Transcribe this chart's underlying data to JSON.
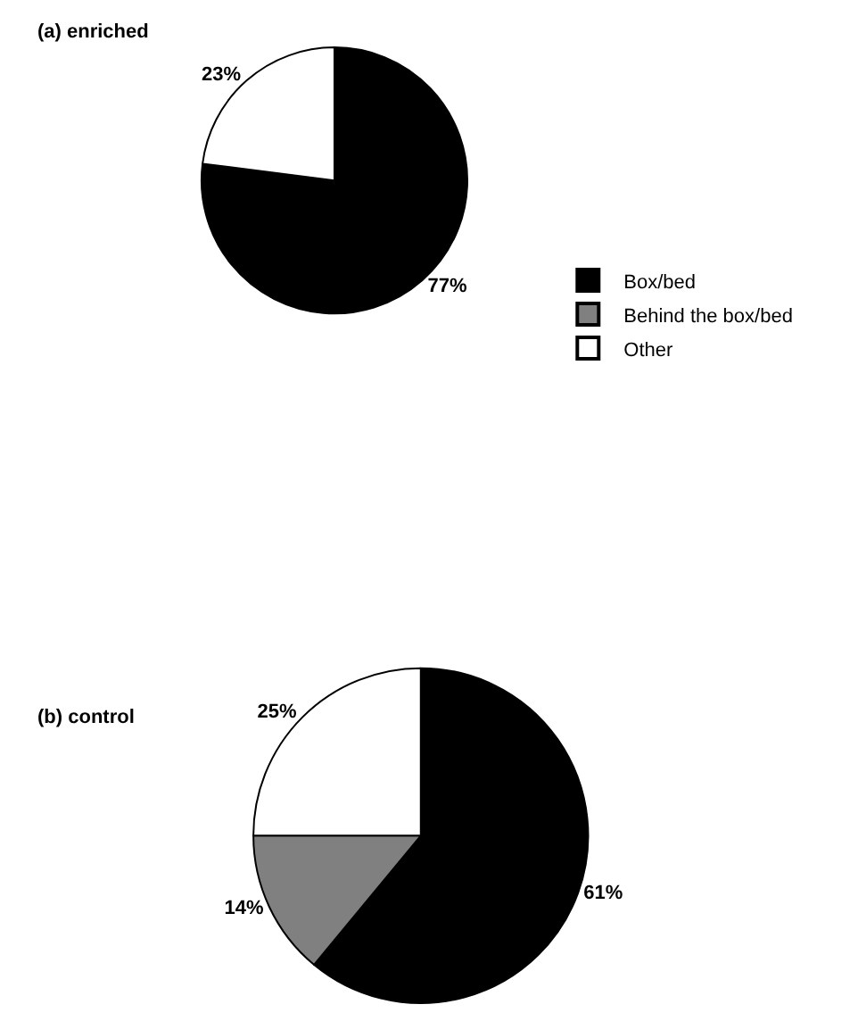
{
  "chart_data": [
    {
      "type": "pie",
      "title": "(a) enriched",
      "categories": [
        "Box/bed",
        "Behind the box/bed",
        "Other"
      ],
      "values": [
        77,
        0,
        23
      ],
      "colors": [
        "#000000",
        "#808080",
        "#ffffff"
      ],
      "value_labels": [
        "77%",
        null,
        "23%"
      ],
      "legend": "bottom right"
    },
    {
      "type": "pie",
      "title": "(b) control",
      "categories": [
        null,
        null,
        null
      ],
      "values": [
        61,
        14,
        25
      ],
      "colors": [
        "#000000",
        "#808080",
        "#ffffff"
      ],
      "value_labels": [
        "61%",
        "14%",
        "25%"
      ]
    }
  ]
}
